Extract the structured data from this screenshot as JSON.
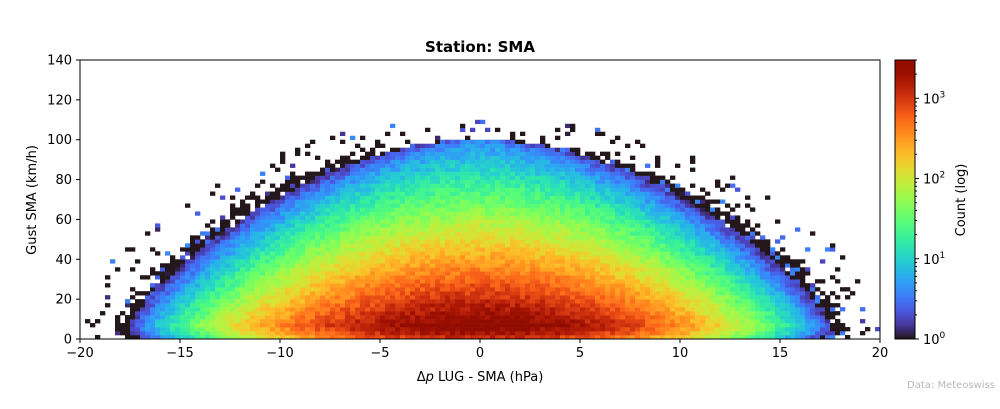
{
  "chart_data": {
    "type": "heatmap",
    "title": "Station: SMA",
    "xlabel_prefix": "Δ",
    "xlabel_italic": "p",
    "xlabel_rest": " LUG - SMA (hPa)",
    "ylabel": "Gust SMA (km/h)",
    "xlim": [
      -20,
      20
    ],
    "ylim": [
      0,
      140
    ],
    "x_ticks": [
      -20,
      -15,
      -10,
      -5,
      0,
      5,
      10,
      15,
      20
    ],
    "x_tick_labels": [
      "−20",
      "−15",
      "−10",
      "−5",
      "0",
      "5",
      "10",
      "15",
      "20"
    ],
    "y_ticks": [
      0,
      20,
      40,
      60,
      80,
      100,
      120,
      140
    ],
    "y_tick_labels": [
      "0",
      "20",
      "40",
      "60",
      "80",
      "100",
      "120",
      "140"
    ],
    "bin_width_x": 0.25,
    "bin_width_y": 2,
    "colorbar": {
      "label": "Count (log)",
      "scale": "log",
      "min": 1,
      "max": 3000,
      "colormap": "turbo",
      "ticks": [
        1,
        10,
        100,
        1000
      ],
      "tick_base": "10",
      "tick_exponents": [
        "0",
        "1",
        "2",
        "3"
      ]
    },
    "density_model": {
      "description_values": {
        "peak_count": 3000,
        "peak_x": 0,
        "peak_y": 7,
        "x_std_core": 5.5,
        "y_decay_scale": 14,
        "max_abs_x_at_gust_0": 19,
        "max_gust_at_x_0": 100
      }
    }
  },
  "credit": "Data: Meteoswiss"
}
